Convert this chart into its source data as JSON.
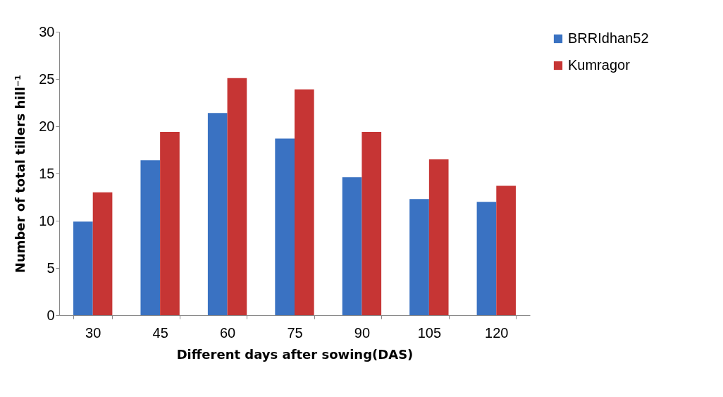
{
  "chart_data": {
    "type": "bar",
    "xlabel": "Different days after sowing(DAS)",
    "ylabel": "Number of total tillers hill⁻¹",
    "categories": [
      "30",
      "45",
      "60",
      "75",
      "90",
      "105",
      "120"
    ],
    "series": [
      {
        "name": "BRRIdhan52",
        "color": "#3a72c2",
        "values": [
          9.9,
          16.4,
          21.4,
          18.7,
          14.6,
          12.3,
          12.0
        ]
      },
      {
        "name": "Kumragor",
        "color": "#c63534",
        "values": [
          13.0,
          19.4,
          25.1,
          23.9,
          19.4,
          16.5,
          13.7
        ]
      }
    ],
    "ylim": [
      0,
      30
    ],
    "yticks": [
      0,
      5,
      10,
      15,
      20,
      25,
      30
    ],
    "grid": false,
    "legend": "right"
  }
}
